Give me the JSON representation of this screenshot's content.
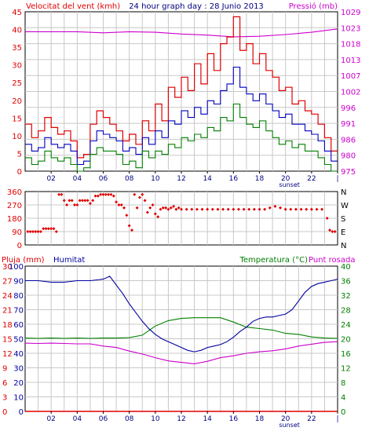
{
  "colors": {
    "wind": "#e00000",
    "gust": "#e00000",
    "avg_wind": "#0000c0",
    "min_wind": "#008000",
    "pressure": "#cc00cc",
    "humidity": "#0000a0",
    "temperature": "#008000",
    "dew_point": "#cc00cc",
    "rain": "#e00000",
    "direction": "#e00000",
    "grid": "#c8c8c8",
    "frame": "#000000"
  },
  "chart_data": [
    {
      "type": "line",
      "title": "24 hour graph day : 28 Junio 2013",
      "ylabel": "Velocitat del vent (kmh)",
      "y2label": "Pressió (mb)",
      "x_ticks": [
        "02",
        "04",
        "06",
        "08",
        "10",
        "12",
        "14",
        "16",
        "18",
        "20",
        "22",
        "|"
      ],
      "x_annotation": "sunset",
      "xlim": [
        0,
        24
      ],
      "ylim": [
        0,
        47.5
      ],
      "y_ticks": [
        "0",
        "5",
        "10",
        "15",
        "20",
        "25",
        "30",
        "35",
        "40",
        "45"
      ],
      "y2lim": [
        974,
        1030
      ],
      "y2_ticks": [
        "975",
        "980",
        "986",
        "991",
        "996",
        "1002",
        "1007",
        "1013",
        "1018",
        "1023",
        "1029"
      ],
      "grid": true,
      "series": [
        {
          "key": "gust",
          "x": [
            0,
            0.5,
            1,
            1.5,
            2,
            2.5,
            3,
            3.5,
            4,
            4.5,
            5,
            5.5,
            6,
            6.5,
            7,
            7.5,
            8,
            8.5,
            9,
            9.5,
            10,
            10.5,
            11,
            11.5,
            12,
            12.5,
            13,
            13.5,
            14,
            14.5,
            15,
            15.5,
            16,
            16.5,
            17,
            17.5,
            18,
            18.5,
            19,
            19.5,
            20,
            20.5,
            21,
            21.5,
            22,
            22.5,
            23,
            23.5
          ],
          "values": [
            14,
            10,
            12,
            16,
            13,
            11,
            12,
            9,
            4,
            5,
            14,
            18,
            16,
            14,
            12,
            9,
            11,
            8,
            15,
            12,
            20,
            15,
            25,
            22,
            28,
            24,
            32,
            26,
            35,
            30,
            38,
            40,
            46,
            36,
            38,
            32,
            35,
            30,
            28,
            24,
            25,
            20,
            21,
            18,
            17,
            14,
            10,
            6
          ]
        },
        {
          "key": "avg_wind",
          "x": [
            0,
            0.5,
            1,
            1.5,
            2,
            2.5,
            3,
            3.5,
            4,
            4.5,
            5,
            5.5,
            6,
            6.5,
            7,
            7.5,
            8,
            8.5,
            9,
            9.5,
            10,
            10.5,
            11,
            11.5,
            12,
            12.5,
            13,
            13.5,
            14,
            14.5,
            15,
            15.5,
            16,
            16.5,
            17,
            17.5,
            18,
            18.5,
            19,
            19.5,
            20,
            20.5,
            21,
            21.5,
            22,
            22.5,
            23,
            23.5
          ],
          "values": [
            8,
            6,
            7,
            10,
            8,
            7,
            8,
            6,
            2,
            3,
            9,
            12,
            11,
            10,
            9,
            6,
            7,
            5,
            10,
            8,
            12,
            10,
            15,
            14,
            18,
            16,
            19,
            17,
            21,
            20,
            24,
            26,
            31,
            25,
            23,
            21,
            23,
            20,
            18,
            16,
            17,
            14,
            14,
            12,
            11,
            9,
            6,
            3
          ]
        },
        {
          "key": "min_wind",
          "x": [
            0,
            0.5,
            1,
            1.5,
            2,
            2.5,
            3,
            3.5,
            4,
            4.5,
            5,
            5.5,
            6,
            6.5,
            7,
            7.5,
            8,
            8.5,
            9,
            9.5,
            10,
            10.5,
            11,
            11.5,
            12,
            12.5,
            13,
            13.5,
            14,
            14.5,
            15,
            15.5,
            16,
            16.5,
            17,
            17.5,
            18,
            18.5,
            19,
            19.5,
            20,
            20.5,
            21,
            21.5,
            22,
            22.5,
            23,
            23.5
          ],
          "values": [
            4,
            2,
            3,
            6,
            4,
            3,
            4,
            2,
            0,
            1,
            5,
            7,
            6,
            6,
            5,
            2,
            3,
            1,
            6,
            4,
            6,
            5,
            8,
            7,
            10,
            9,
            11,
            10,
            13,
            12,
            16,
            15,
            20,
            16,
            14,
            13,
            15,
            12,
            10,
            8,
            9,
            7,
            8,
            6,
            6,
            4,
            2,
            0
          ]
        },
        {
          "key": "pressure",
          "axis": "y2",
          "x": [
            0,
            2,
            4,
            6,
            8,
            10,
            12,
            14,
            16,
            18,
            20,
            22,
            24
          ],
          "values": [
            1023,
            1023,
            1023,
            1022.6,
            1023,
            1022.8,
            1022.2,
            1021.8,
            1021.2,
            1021.4,
            1022,
            1022.8,
            1024
          ]
        }
      ]
    },
    {
      "type": "scatter",
      "title": "",
      "xlim": [
        0,
        24
      ],
      "ylim": [
        0,
        360
      ],
      "y_ticks": [
        "0",
        "90",
        "180",
        "270",
        "360"
      ],
      "y2_ticks": [
        "N",
        "E",
        "S",
        "W",
        "N"
      ],
      "grid": true,
      "series": [
        {
          "key": "direction",
          "x": [
            0.2,
            0.4,
            0.6,
            0.8,
            1.0,
            1.2,
            1.4,
            1.6,
            1.8,
            2.0,
            2.2,
            2.4,
            2.6,
            2.8,
            3.0,
            3.2,
            3.4,
            3.6,
            3.8,
            4.0,
            4.2,
            4.4,
            4.6,
            4.8,
            5.0,
            5.2,
            5.4,
            5.6,
            5.8,
            6.0,
            6.2,
            6.4,
            6.6,
            6.8,
            7.0,
            7.2,
            7.4,
            7.6,
            7.8,
            8.0,
            8.2,
            8.4,
            8.6,
            8.8,
            9.0,
            9.2,
            9.4,
            9.6,
            9.8,
            10.0,
            10.2,
            10.4,
            10.6,
            10.8,
            11.0,
            11.2,
            11.4,
            11.6,
            11.8,
            12.0,
            12.4,
            12.8,
            13.2,
            13.6,
            14.0,
            14.4,
            14.8,
            15.2,
            15.6,
            16.0,
            16.4,
            16.8,
            17.2,
            17.6,
            18.0,
            18.4,
            18.8,
            19.2,
            19.6,
            20.0,
            20.4,
            20.8,
            21.2,
            21.6,
            22.0,
            22.4,
            22.8,
            23.2,
            23.4,
            23.6,
            23.8
          ],
          "values": [
            90,
            90,
            90,
            90,
            90,
            90,
            110,
            110,
            110,
            110,
            110,
            90,
            340,
            340,
            300,
            270,
            300,
            300,
            270,
            270,
            300,
            300,
            300,
            300,
            280,
            300,
            330,
            330,
            340,
            340,
            340,
            340,
            340,
            330,
            290,
            270,
            270,
            250,
            200,
            130,
            100,
            340,
            250,
            320,
            340,
            300,
            220,
            250,
            270,
            210,
            190,
            240,
            250,
            250,
            240,
            250,
            260,
            240,
            250,
            240,
            240,
            240,
            240,
            240,
            240,
            240,
            240,
            240,
            240,
            240,
            240,
            240,
            240,
            240,
            240,
            240,
            250,
            260,
            250,
            240,
            240,
            240,
            240,
            240,
            240,
            240,
            240,
            180,
            100,
            90,
            90
          ]
        }
      ]
    },
    {
      "type": "line",
      "title": "",
      "labels": {
        "rain": "Pluja (mm)",
        "humidity": "Humitat",
        "temp_label": "Temperatura (°C)",
        "dew_label": "Punt rosada"
      },
      "x_ticks": [
        "02",
        "04",
        "06",
        "08",
        "10",
        "12",
        "14",
        "16",
        "18",
        "20",
        "22",
        "|"
      ],
      "x_annotation": "sunset",
      "xlim": [
        0,
        24
      ],
      "ylim": [
        0,
        100
      ],
      "y_ticks": [
        "0",
        "10",
        "20",
        "30",
        "40",
        "50",
        "60",
        "70",
        "80",
        "90",
        "100"
      ],
      "y_ticks_rain": [
        "0",
        "3",
        "6",
        "9",
        "12",
        "15",
        "18",
        "21",
        "24",
        "27",
        "30"
      ],
      "y2lim": [
        0,
        40
      ],
      "y2_ticks": [
        "0",
        "2",
        "4",
        "6",
        "8",
        "10",
        "12",
        "14",
        "16",
        "18",
        "20",
        "22",
        "24",
        "26",
        "28",
        "30",
        "32",
        "34",
        "36",
        "38",
        "40"
      ],
      "grid": true,
      "series": [
        {
          "key": "humidity",
          "x": [
            0,
            1,
            2,
            3,
            4,
            5,
            6,
            6.5,
            7,
            7.5,
            8,
            8.5,
            9,
            9.5,
            10,
            10.5,
            11,
            11.5,
            12,
            12.5,
            13,
            13.5,
            14,
            14.5,
            15,
            15.5,
            16,
            16.5,
            17,
            17.5,
            18,
            18.5,
            19,
            19.5,
            20,
            20.5,
            21,
            21.5,
            22,
            22.5,
            23,
            23.5,
            24
          ],
          "values": [
            90,
            90,
            89,
            89,
            90,
            90,
            91,
            93,
            87,
            81,
            74,
            68,
            62,
            57,
            53,
            50,
            48,
            46,
            44,
            42,
            41,
            42,
            44,
            45,
            46,
            48,
            51,
            55,
            58,
            62,
            64,
            65,
            65,
            66,
            67,
            70,
            76,
            82,
            86,
            88,
            89,
            90,
            91
          ]
        },
        {
          "key": "temperature",
          "axis": "y2",
          "x": [
            0,
            1,
            2,
            3,
            4,
            5,
            6,
            7,
            8,
            9,
            10,
            11,
            12,
            13,
            14,
            15,
            16,
            17,
            18,
            19,
            20,
            21,
            22,
            23,
            24
          ],
          "values": [
            20.2,
            20.1,
            20.2,
            20.1,
            20.2,
            20.1,
            20.2,
            20.2,
            20.3,
            21,
            23.5,
            25,
            25.6,
            25.8,
            25.8,
            25.8,
            24.6,
            23.2,
            22.8,
            22.4,
            21.5,
            21.2,
            20.5,
            20.2,
            20.1
          ]
        },
        {
          "key": "dew_point",
          "axis": "y2",
          "x": [
            0,
            1,
            2,
            3,
            4,
            5,
            6,
            7,
            8,
            9,
            10,
            11,
            12,
            13,
            14,
            15,
            16,
            17,
            18,
            19,
            20,
            21,
            22,
            23,
            24
          ],
          "values": [
            18.8,
            18.7,
            18.8,
            18.7,
            18.6,
            18.6,
            18,
            17.6,
            16.6,
            15.8,
            14.8,
            13.9,
            13.5,
            13.1,
            13.8,
            14.8,
            15.3,
            16,
            16.4,
            16.7,
            17.2,
            18,
            18.5,
            19,
            19.2
          ]
        },
        {
          "key": "rain",
          "x": [
            0,
            24
          ],
          "values": [
            0,
            0
          ]
        }
      ]
    }
  ]
}
